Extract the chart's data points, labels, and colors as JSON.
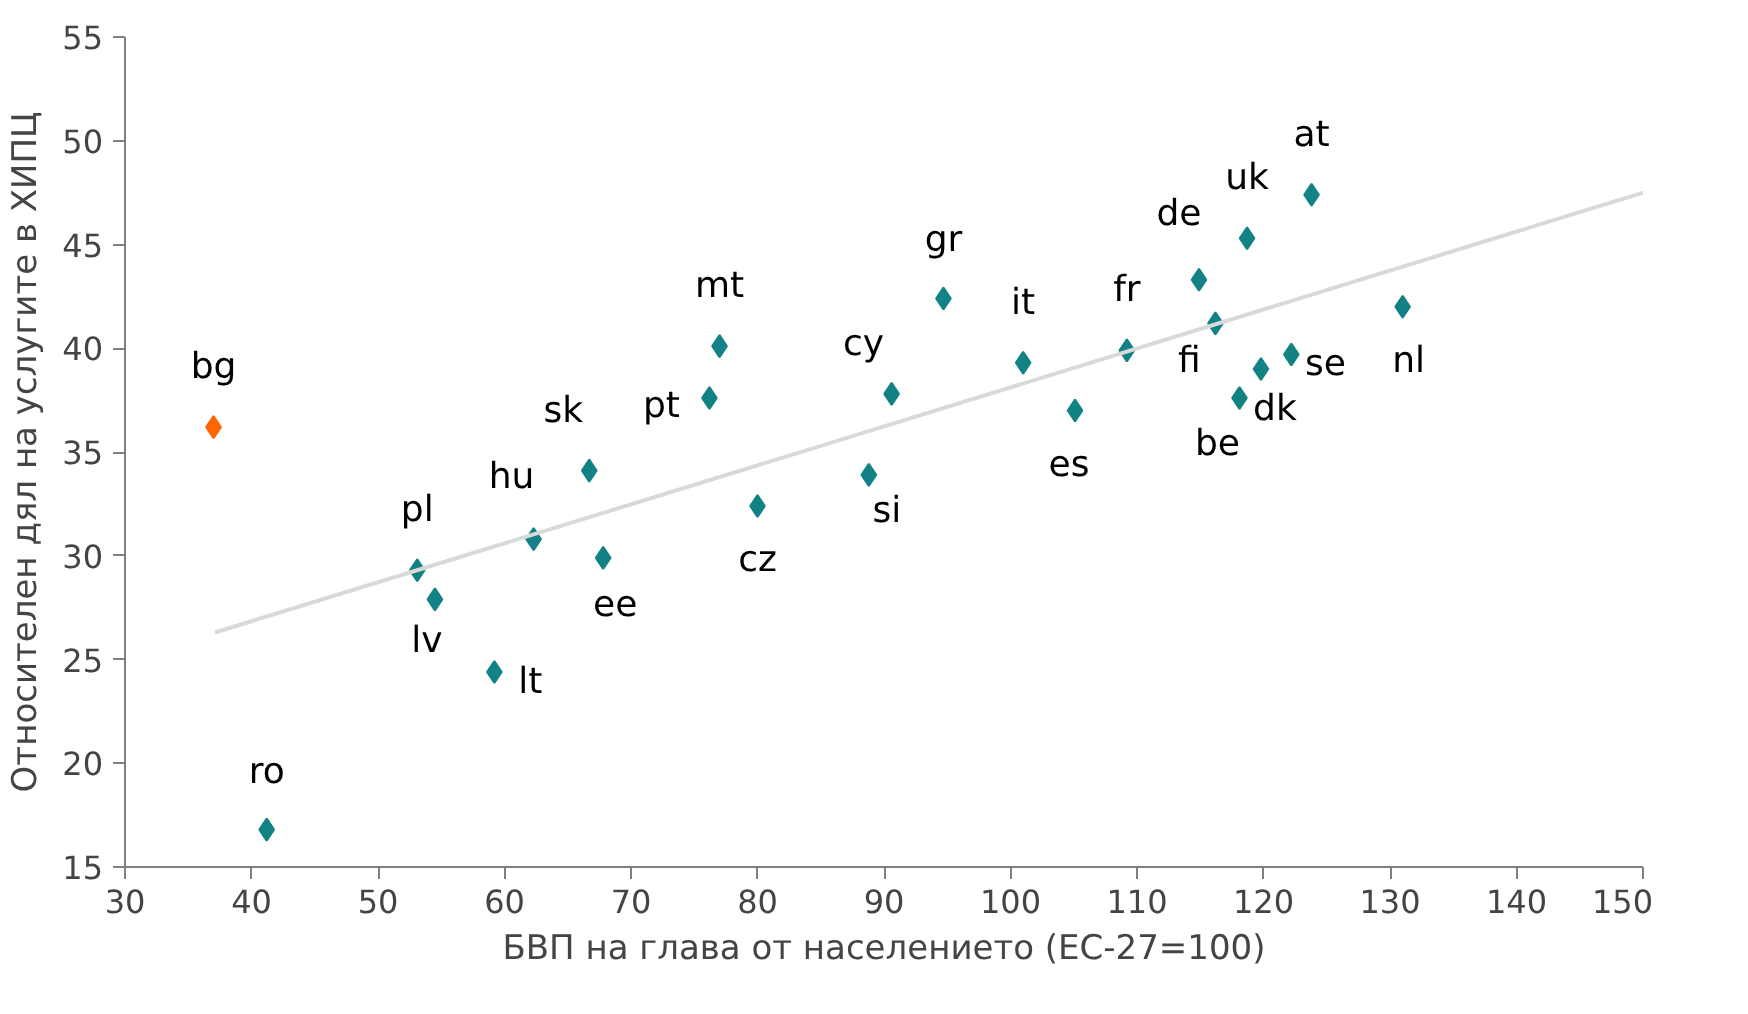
{
  "chart_data": {
    "type": "scatter",
    "xlabel": "БВП на глава от населението (ЕС-27=100)",
    "ylabel": "Относителен дял на услугите в ХИПЦ",
    "xlim": [
      30,
      150
    ],
    "ylim": [
      15,
      55
    ],
    "xticks": [
      30,
      40,
      50,
      60,
      70,
      80,
      90,
      100,
      110,
      120,
      130,
      140,
      150
    ],
    "yticks": [
      15,
      20,
      25,
      30,
      35,
      40,
      45,
      50,
      55
    ],
    "grid": false,
    "series": [
      {
        "marker": "diamond",
        "x": [
          37,
          41.2,
          53.1,
          54.5,
          59.2,
          62.3,
          66.7,
          67.8,
          76.2,
          77.0,
          80.0,
          88.8,
          90.6,
          94.7,
          101,
          105.1,
          109.2,
          114.9,
          116.2,
          118.1,
          118.7,
          119.8,
          122.2,
          123.8,
          131.0
        ],
        "values": [
          36.2,
          16.8,
          29.3,
          27.9,
          24.4,
          30.8,
          34.1,
          29.9,
          37.6,
          40.1,
          32.4,
          33.9,
          37.8,
          42.4,
          39.3,
          37.0,
          39.9,
          43.3,
          41.2,
          37.6,
          45.3,
          39.0,
          39.7,
          47.4,
          42.0
        ],
        "colors": [
          "#ff6600",
          "#138284",
          "#138284",
          "#138284",
          "#138284",
          "#138284",
          "#138284",
          "#138284",
          "#138284",
          "#138284",
          "#138284",
          "#138284",
          "#138284",
          "#138284",
          "#138284",
          "#138284",
          "#138284",
          "#138284",
          "#138284",
          "#138284",
          "#138284",
          "#138284",
          "#138284",
          "#138284",
          "#138284"
        ]
      },
      {
        "type": "line",
        "x": [
          37.1,
          150
        ],
        "values": [
          26.3,
          47.5
        ],
        "color": "#d9d9d9"
      }
    ],
    "annotations": [
      {
        "text": "bg",
        "x": 37,
        "y": 36.2
      },
      {
        "text": "ro",
        "x": 41.2,
        "y": 16.8
      },
      {
        "text": "pl",
        "x": 53.1,
        "y": 29.3
      },
      {
        "text": "lv",
        "x": 54.5,
        "y": 27.9
      },
      {
        "text": "lt",
        "x": 59.2,
        "y": 24.4
      },
      {
        "text": "hu",
        "x": 62.3,
        "y": 30.8
      },
      {
        "text": "sk",
        "x": 66.7,
        "y": 34.1
      },
      {
        "text": "ee",
        "x": 67.8,
        "y": 29.9
      },
      {
        "text": "pt",
        "x": 76.2,
        "y": 37.6
      },
      {
        "text": "mt",
        "x": 77.0,
        "y": 40.1
      },
      {
        "text": "cz",
        "x": 80.0,
        "y": 32.4
      },
      {
        "text": "si",
        "x": 88.8,
        "y": 33.9
      },
      {
        "text": "cy",
        "x": 90.6,
        "y": 37.8
      },
      {
        "text": "gr",
        "x": 94.7,
        "y": 42.4
      },
      {
        "text": "it",
        "x": 101,
        "y": 39.3
      },
      {
        "text": "es",
        "x": 105.1,
        "y": 37.0
      },
      {
        "text": "fr",
        "x": 109.2,
        "y": 39.9
      },
      {
        "text": "de",
        "x": 114.9,
        "y": 43.3
      },
      {
        "text": "fi",
        "x": 116.2,
        "y": 41.2
      },
      {
        "text": "be",
        "x": 118.1,
        "y": 37.6
      },
      {
        "text": "uk",
        "x": 118.7,
        "y": 45.3
      },
      {
        "text": "dk",
        "x": 119.8,
        "y": 39.0
      },
      {
        "text": "se",
        "x": 122.2,
        "y": 39.7
      },
      {
        "text": "at",
        "x": 123.8,
        "y": 47.4
      },
      {
        "text": "nl",
        "x": 131.0,
        "y": 42.0
      }
    ]
  }
}
